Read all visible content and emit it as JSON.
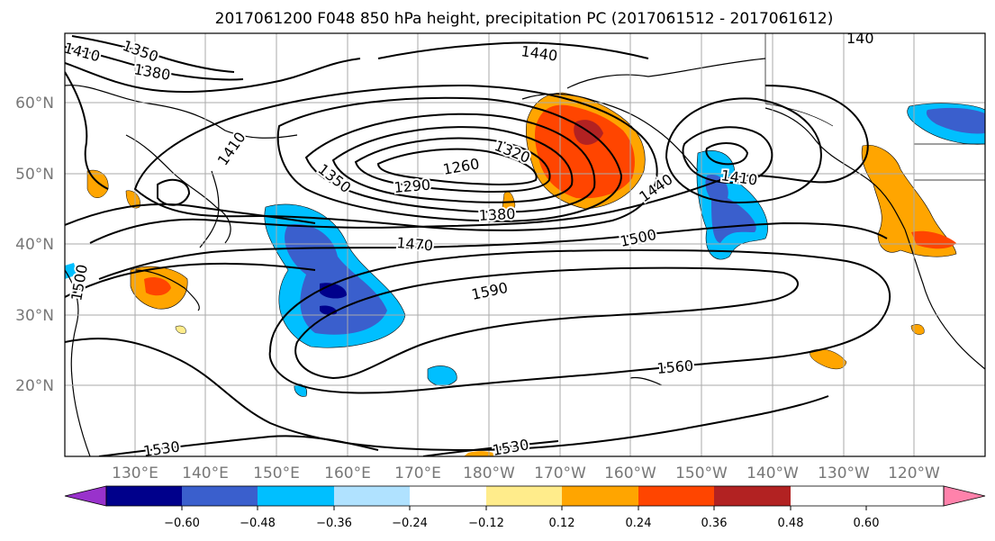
{
  "title": "2017061200 F048 850 hPa height, precipitation PC (2017061512 - 2017061612)",
  "lon_labels": [
    "130°E",
    "140°E",
    "150°E",
    "160°E",
    "170°E",
    "180°W",
    "170°W",
    "160°W",
    "150°W",
    "140°W",
    "130°W",
    "120°W"
  ],
  "lat_labels": [
    "60°N",
    "50°N",
    "40°N",
    "30°N",
    "20°N"
  ],
  "contour_labels": [
    "1350",
    "1410",
    "1380",
    "1440",
    "1320",
    "1260",
    "1290",
    "1350",
    "1380",
    "1410",
    "1410",
    "1440",
    "1470",
    "1500",
    "1590",
    "1500",
    "1560",
    "1530",
    "1530",
    "140"
  ],
  "colorbar": {
    "ticks": [
      "−0.60",
      "−0.48",
      "−0.36",
      "−0.24",
      "−0.12",
      "0.12",
      "0.24",
      "0.36",
      "0.48",
      "0.60"
    ],
    "colors": [
      "#9932cc",
      "#00008b",
      "#3a5fcd",
      "#00bfff",
      "#b0e2ff",
      "#ffffff",
      "#ffec8b",
      "#ffa500",
      "#ff4500",
      "#b22222",
      "#ff82ab"
    ]
  }
}
